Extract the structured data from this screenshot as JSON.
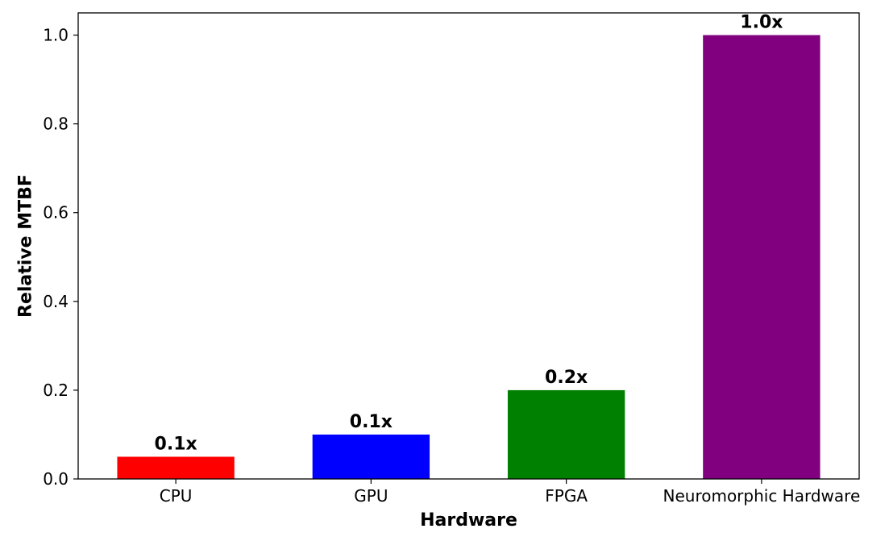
{
  "chart_data": {
    "type": "bar",
    "title": "",
    "xlabel": "Hardware",
    "ylabel": "Relative MTBF",
    "categories": [
      "CPU",
      "GPU",
      "FPGA",
      "Neuromorphic Hardware"
    ],
    "values": [
      0.05,
      0.1,
      0.2,
      1.0
    ],
    "data_labels": [
      "0.1x",
      "0.1x",
      "0.2x",
      "1.0x"
    ],
    "colors": [
      "#ff0000",
      "#0000ff",
      "#008000",
      "#800080"
    ],
    "ylim": [
      0,
      1.05
    ],
    "yticks": [
      0.0,
      0.2,
      0.4,
      0.6,
      0.8,
      1.0
    ],
    "ytick_labels": [
      "0.0",
      "0.2",
      "0.4",
      "0.6",
      "0.8",
      "1.0"
    ],
    "grid": false,
    "legend": "none"
  }
}
